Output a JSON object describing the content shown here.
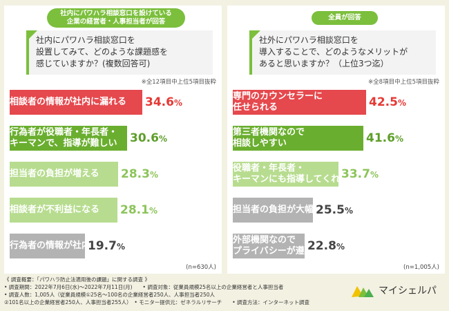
{
  "colors": {
    "accent_green": "#7bbf3c",
    "bar_red": "#e5484d",
    "bar_green": "#6aae2f",
    "bar_light_green": "#b7dc8f",
    "bar_gray": "#b3b3b3",
    "value_red": "#e53935",
    "value_green": "#5e9e2a",
    "value_light_green": "#8cc45a",
    "value_gray": "#444444"
  },
  "left": {
    "pill": "社内にパワハラ相談窓口を設けている\n企業の経営者・人事担当者が回答",
    "question": "社内にパワハラ相談窓口を\n設置してみて、どのような課題感を\n感じていますか？(複数回答可)",
    "note": "※全12項目中上位5項目抜粋",
    "n": "(n=630人)"
  },
  "right": {
    "pill": "全員が回答",
    "question": "社外にパワハラ相談窓口を\n導入することで、どのようなメリットが\nあると思いますか？（上位3つ迄）",
    "note": "※全8項目中上位5項目抜粋",
    "n": "(n=1,005人)"
  },
  "chart_data": [
    {
      "type": "bar",
      "orientation": "horizontal",
      "categories": [
        "相談者の情報が社内に漏れる",
        "行為者が役職者・年長者・\nキーマンで、指導が難しい",
        "担当者の負担が増える",
        "相談者が不利益になる",
        "行為者の情報が社内に漏れる"
      ],
      "values": [
        34.6,
        30.6,
        28.3,
        28.1,
        19.7
      ],
      "value_labels": [
        "34.6",
        "30.6",
        "28.3",
        "28.1",
        "19.7"
      ],
      "unit": "%",
      "bar_colors": [
        "bar_red",
        "bar_green",
        "bar_light_green",
        "bar_light_green",
        "bar_gray"
      ],
      "value_colors": [
        "value_red",
        "value_green",
        "value_light_green",
        "value_light_green",
        "value_gray"
      ],
      "xlim": [
        0,
        45
      ]
    },
    {
      "type": "bar",
      "orientation": "horizontal",
      "categories": [
        "専門のカウンセラーに\n任せられる",
        "第三者機関なので\n相談しやすい",
        "役職者・年長者・\nキーマンにも指導してくれる",
        "担当者の負担が大幅に軽減される",
        "外部機関なので\nプライバシーが遵守される"
      ],
      "values": [
        42.5,
        41.6,
        33.7,
        25.5,
        22.8
      ],
      "value_labels": [
        "42.5",
        "41.6",
        "33.7",
        "25.5",
        "22.8"
      ],
      "unit": "%",
      "bar_colors": [
        "bar_red",
        "bar_green",
        "bar_light_green",
        "bar_gray",
        "bar_gray"
      ],
      "value_colors": [
        "value_red",
        "value_green",
        "value_light_green",
        "value_gray",
        "value_gray"
      ],
      "xlim": [
        0,
        55
      ]
    }
  ],
  "footer": {
    "line1": "《 調査概要：「パワハラ防止法適用後の課題」に関する調査 》",
    "line2": "• 調査期間：2022年7月6日(水)～2022年7月11日(月)　　• 調査対象：従業員規模25名以上の企業経営者と人事担当者",
    "line3": "• 調査人数：1,005人（従業員規模①25名～100名の企業経営者250人、人事担当者250人",
    "line4": "②101名以上の企業経営者250人、人事担当者255人）　• モニター提供元：ゼネラルリサーチ　　• 調査方法：インターネット調査"
  },
  "logo": {
    "text": "マイシェルパ",
    "icon": "mountain-logo-icon"
  }
}
